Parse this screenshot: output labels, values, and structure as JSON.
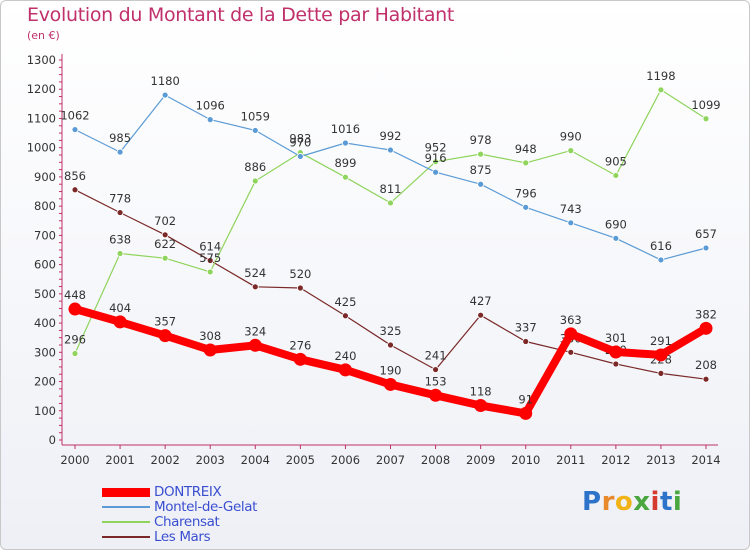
{
  "title": "Evolution du Montant de la Dette par Habitant",
  "subtitle": "(en €)",
  "logo": "Proxiti",
  "chart_data": {
    "type": "line",
    "x": [
      "2000",
      "2001",
      "2002",
      "2003",
      "2004",
      "2005",
      "2006",
      "2007",
      "2008",
      "2009",
      "2010",
      "2011",
      "2012",
      "2013",
      "2014"
    ],
    "ylim": [
      0,
      1300
    ],
    "yticks": [
      0,
      100,
      200,
      300,
      400,
      500,
      600,
      700,
      800,
      900,
      1000,
      1100,
      1200,
      1300
    ],
    "grid": false,
    "legend_position": "bottom-left",
    "series": [
      {
        "name": "Les Mars",
        "color": "#7a2828",
        "values": [
          856,
          778,
          702,
          614,
          524,
          520,
          425,
          325,
          241,
          427,
          337,
          300,
          260,
          228,
          208
        ]
      },
      {
        "name": "Charensat",
        "color": "#8fd45c",
        "values": [
          296,
          638,
          622,
          575,
          886,
          983,
          899,
          811,
          952,
          978,
          948,
          990,
          905,
          1198,
          1099
        ]
      },
      {
        "name": "Montel-de-Gelat",
        "color": "#5b9bd5",
        "values": [
          1062,
          985,
          1180,
          1096,
          1059,
          970,
          1016,
          992,
          916,
          875,
          796,
          743,
          690,
          616,
          657
        ]
      },
      {
        "name": "DONTREIX",
        "color": "#ff0000",
        "values": [
          448,
          404,
          357,
          308,
          324,
          276,
          240,
          190,
          153,
          118,
          91,
          363,
          301,
          291,
          382
        ]
      }
    ],
    "point_labels": {
      "Les Mars": [
        "856",
        "778",
        "702",
        "614",
        "524",
        "520",
        "425",
        "325",
        "241",
        "427",
        "337",
        "300",
        "260",
        "228",
        "208"
      ],
      "Charensat": [
        "296",
        "638",
        "622",
        "575",
        "886",
        "983",
        "899",
        "811",
        "952",
        "978",
        "948",
        "990",
        "905",
        "1198",
        "1099"
      ],
      "Montel-de-Gelat": [
        "1062",
        "985",
        "1180",
        "1096",
        "1059",
        "970",
        "1016",
        "992",
        "916",
        "875",
        "796",
        "743",
        "690",
        "616",
        "657"
      ],
      "DONTREIX": [
        "448",
        "404",
        "357",
        "308",
        "324",
        "276",
        "240",
        "190",
        "153",
        "118",
        "91",
        "363",
        "301",
        "291",
        "382"
      ]
    }
  },
  "legend": [
    {
      "label": "DONTREIX",
      "color": "#ff0000"
    },
    {
      "label": "Montel-de-Gelat",
      "color": "#5b9bd5"
    },
    {
      "label": "Charensat",
      "color": "#8fd45c"
    },
    {
      "label": "Les Mars",
      "color": "#7a2828"
    }
  ]
}
